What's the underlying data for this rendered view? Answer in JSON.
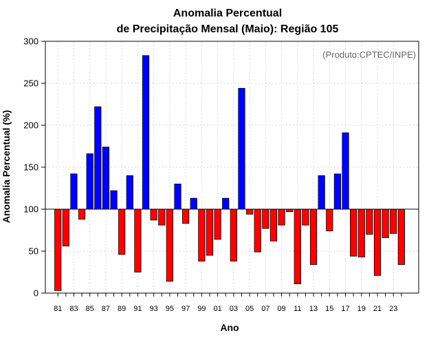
{
  "chart_data": {
    "type": "bar",
    "title_line1": "Anomalia Percentual",
    "title_line2": "de Precipitação Mensal (Maio): Região 105",
    "xlabel": "Ano",
    "ylabel": "Anomalia Percentual (%)",
    "credit": "(Produto:CPTEC/INPE)",
    "baseline": 100,
    "ylim": [
      0,
      300
    ],
    "yticks": [
      0,
      50,
      100,
      150,
      200,
      250,
      300
    ],
    "ytick_labels": [
      "0",
      "50",
      "100",
      "150",
      "200",
      "250",
      "300"
    ],
    "grid": true,
    "colors": {
      "above": "#0000ff",
      "below": "#ff0000",
      "edge": "#000000",
      "grid": "#d9d9d9"
    },
    "categories": [
      1981,
      1982,
      1983,
      1984,
      1985,
      1986,
      1987,
      1988,
      1989,
      1990,
      1991,
      1992,
      1993,
      1994,
      1995,
      1996,
      1997,
      1998,
      1999,
      2000,
      2001,
      2002,
      2003,
      2004,
      2005,
      2006,
      2007,
      2008,
      2009,
      2010,
      2011,
      2012,
      2013,
      2014,
      2015,
      2016,
      2017,
      2018,
      2019,
      2020,
      2021,
      2022,
      2023,
      2024
    ],
    "tick_labels": [
      "81",
      "",
      "83",
      "",
      "85",
      "",
      "87",
      "",
      "89",
      "",
      "91",
      "",
      "93",
      "",
      "95",
      "",
      "97",
      "",
      "99",
      "",
      "01",
      "",
      "03",
      "",
      "05",
      "",
      "07",
      "",
      "09",
      "",
      "11",
      "",
      "13",
      "",
      "15",
      "",
      "17",
      "",
      "19",
      "",
      "21",
      "",
      "23",
      ""
    ],
    "values": [
      3,
      56,
      142,
      88,
      166,
      222,
      174,
      122,
      46,
      140,
      25,
      283,
      87,
      81,
      14,
      130,
      83,
      113,
      38,
      45,
      64,
      113,
      38,
      244,
      94,
      49,
      77,
      62,
      81,
      97,
      11,
      81,
      34,
      140,
      74,
      142,
      191,
      44,
      43,
      70,
      21,
      66,
      71,
      34
    ]
  }
}
